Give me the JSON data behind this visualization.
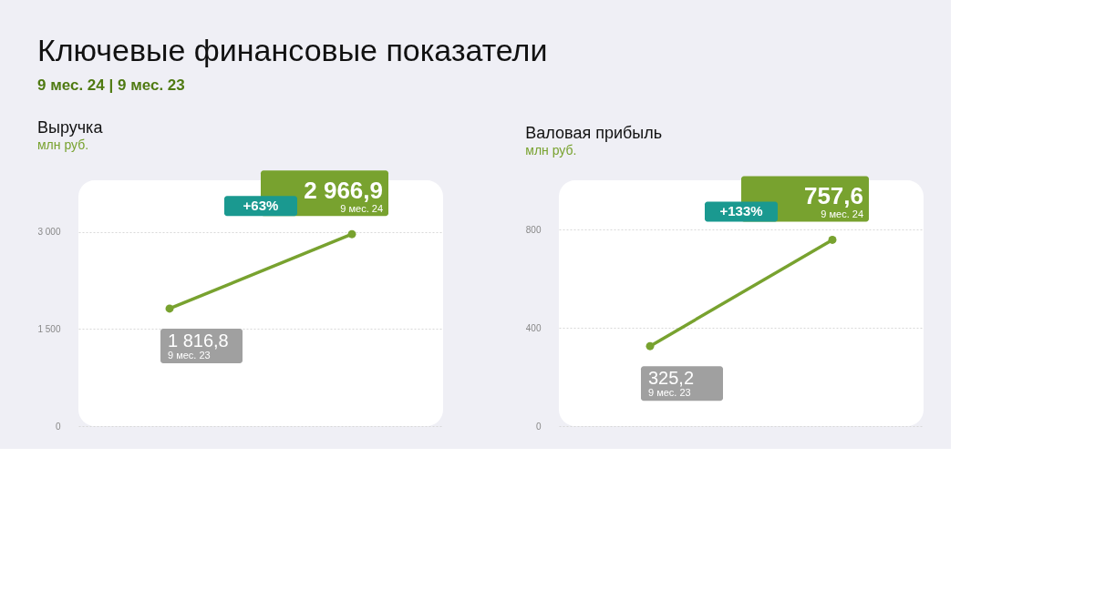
{
  "chart_data": [
    {
      "type": "line",
      "title": "Выручка",
      "ylabel": "млн руб.",
      "annotations": [
        "Ключевые финансовые показатели",
        "9 мес. 24 | 9 мес. 23",
        "+63%"
      ],
      "categories": [
        "9 мес. 23",
        "9 мес. 24"
      ],
      "series": [
        {
          "color": "#78a22f",
          "values": [
            1816.8,
            2966.9
          ],
          "value_labels": [
            "1 816,8",
            "2 966,9"
          ]
        }
      ],
      "ylim": [
        0,
        3800
      ],
      "yticks": [
        0,
        {
          "value": 1500,
          "label": "1 500"
        },
        {
          "value": 3000,
          "label": "3 000"
        }
      ],
      "grid": "y",
      "marker": "circle",
      "tick_labels": "y"
    },
    {
      "type": "line",
      "title": "Валовая прибыль",
      "ylabel": "млн руб.",
      "annotations": [
        "+133%"
      ],
      "categories": [
        "9 мес. 23",
        "9 мес. 24"
      ],
      "series": [
        {
          "color": "#78a22f",
          "values": [
            325.2,
            757.6
          ],
          "value_labels": [
            "325,2",
            "757,6"
          ]
        }
      ],
      "ylim": [
        0,
        1000
      ],
      "yticks": [
        0,
        400,
        800
      ],
      "grid": "y",
      "marker": "circle",
      "tick_labels": "y"
    }
  ]
}
